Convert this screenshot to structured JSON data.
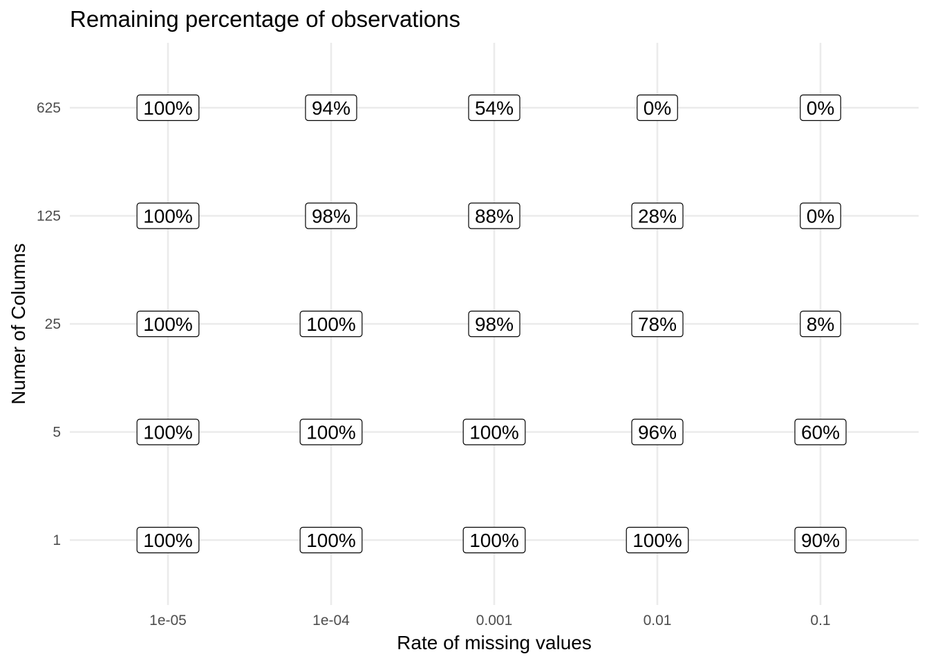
{
  "chart_data": {
    "type": "table",
    "title": "Remaining percentage of observations",
    "xlabel": "Rate of missing values",
    "ylabel": "Numer of Columns",
    "x_categories": [
      "1e-05",
      "1e-04",
      "0.001",
      "0.01",
      "0.1"
    ],
    "y_categories": [
      "1",
      "5",
      "25",
      "125",
      "625"
    ],
    "grid": true,
    "legend": "none",
    "cells": [
      {
        "x": "1e-05",
        "y": "625",
        "label": "100%"
      },
      {
        "x": "1e-04",
        "y": "625",
        "label": "94%"
      },
      {
        "x": "0.001",
        "y": "625",
        "label": "54%"
      },
      {
        "x": "0.01",
        "y": "625",
        "label": "0%"
      },
      {
        "x": "0.1",
        "y": "625",
        "label": "0%"
      },
      {
        "x": "1e-05",
        "y": "125",
        "label": "100%"
      },
      {
        "x": "1e-04",
        "y": "125",
        "label": "98%"
      },
      {
        "x": "0.001",
        "y": "125",
        "label": "88%"
      },
      {
        "x": "0.01",
        "y": "125",
        "label": "28%"
      },
      {
        "x": "0.1",
        "y": "125",
        "label": "0%"
      },
      {
        "x": "1e-05",
        "y": "25",
        "label": "100%"
      },
      {
        "x": "1e-04",
        "y": "25",
        "label": "100%"
      },
      {
        "x": "0.001",
        "y": "25",
        "label": "98%"
      },
      {
        "x": "0.01",
        "y": "25",
        "label": "78%"
      },
      {
        "x": "0.1",
        "y": "25",
        "label": "8%"
      },
      {
        "x": "1e-05",
        "y": "5",
        "label": "100%"
      },
      {
        "x": "1e-04",
        "y": "5",
        "label": "100%"
      },
      {
        "x": "0.001",
        "y": "5",
        "label": "100%"
      },
      {
        "x": "0.01",
        "y": "5",
        "label": "96%"
      },
      {
        "x": "0.1",
        "y": "5",
        "label": "60%"
      },
      {
        "x": "1e-05",
        "y": "1",
        "label": "100%"
      },
      {
        "x": "1e-04",
        "y": "1",
        "label": "100%"
      },
      {
        "x": "0.001",
        "y": "1",
        "label": "100%"
      },
      {
        "x": "0.01",
        "y": "1",
        "label": "100%"
      },
      {
        "x": "0.1",
        "y": "1",
        "label": "90%"
      }
    ]
  }
}
